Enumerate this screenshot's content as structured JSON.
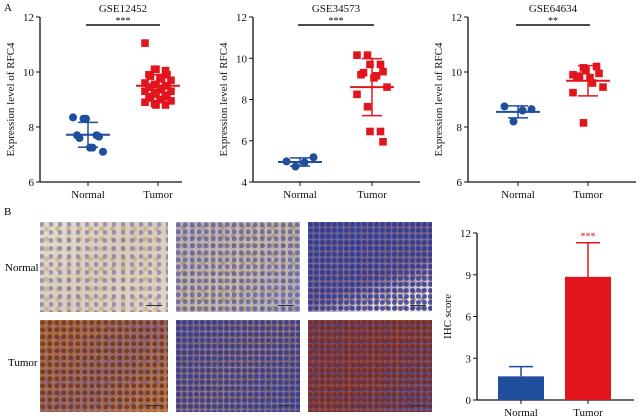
{
  "panels": {
    "a": "A",
    "b": "B"
  },
  "colors": {
    "normal": "#1f4e9c",
    "tumor": "#e3151c",
    "axis": "#111111"
  },
  "chart_data": [
    {
      "type": "scatter",
      "title": "GSE12452",
      "ylabel": "Expression level of RFC4",
      "categories": [
        "Normal",
        "Tumor"
      ],
      "ylim": [
        6,
        12
      ],
      "yticks": [
        "6",
        "8",
        "10",
        "12"
      ],
      "significance": "***",
      "series": [
        {
          "name": "Normal",
          "values": [
            8.35,
            8.3,
            8.3,
            7.7,
            7.65,
            7.7,
            7.6,
            7.25,
            7.25,
            7.1
          ],
          "mean": 7.72,
          "sd": 0.45
        },
        {
          "name": "Tumor",
          "values": [
            11.05,
            10.1,
            10.1,
            10.05,
            9.9,
            9.9,
            9.85,
            9.8,
            9.75,
            9.7,
            9.6,
            9.55,
            9.55,
            9.5,
            9.5,
            9.45,
            9.45,
            9.4,
            9.35,
            9.3,
            9.3,
            9.25,
            9.2,
            9.15,
            9.1,
            9.1,
            9.05,
            9.0,
            9.0,
            8.95,
            8.9,
            8.85,
            8.8,
            8.8
          ],
          "mean": 9.5,
          "sd": 0.4
        }
      ]
    },
    {
      "type": "scatter",
      "title": "GSE34573",
      "ylabel": "Expression level of RFC4",
      "categories": [
        "Normal",
        "Tumor"
      ],
      "ylim": [
        4,
        12
      ],
      "yticks": [
        "4",
        "6",
        "8",
        "10",
        "12"
      ],
      "significance": "***",
      "series": [
        {
          "name": "Normal",
          "values": [
            5.0,
            4.75,
            4.95,
            5.2
          ],
          "mean": 4.97,
          "sd": 0.2
        },
        {
          "name": "Tumor",
          "values": [
            10.15,
            10.15,
            9.7,
            9.7,
            9.35,
            9.2,
            9.3,
            9.05,
            9.15,
            8.6,
            8.25,
            7.65,
            6.45,
            6.45,
            5.95
          ],
          "mean": 8.6,
          "sd": 1.38
        }
      ]
    },
    {
      "type": "scatter",
      "title": "GSE64634",
      "ylabel": "Expression level of RFC4",
      "categories": [
        "Normal",
        "Tumor"
      ],
      "ylim": [
        6,
        12
      ],
      "yticks": [
        "6",
        "8",
        "10",
        "12"
      ],
      "significance": "**",
      "series": [
        {
          "name": "Normal",
          "values": [
            8.75,
            8.2,
            8.6,
            8.65
          ],
          "mean": 8.55,
          "sd": 0.22
        },
        {
          "name": "Tumor",
          "values": [
            9.9,
            10.15,
            10.05,
            10.2,
            9.95,
            9.8,
            9.85,
            9.8,
            9.6,
            9.45,
            9.25,
            8.15
          ],
          "mean": 9.68,
          "sd": 0.55
        }
      ]
    },
    {
      "type": "bar",
      "title": "",
      "ylabel": "IHC score",
      "categories": [
        "Normal",
        "Tumor"
      ],
      "ylim": [
        0,
        12
      ],
      "yticks": [
        "0",
        "3",
        "6",
        "9",
        "12"
      ],
      "significance": "***",
      "values": [
        1.7,
        8.85
      ],
      "errors": [
        0.7,
        2.45
      ]
    }
  ],
  "ihc": {
    "rows": [
      "Normal",
      "Tumor"
    ]
  }
}
